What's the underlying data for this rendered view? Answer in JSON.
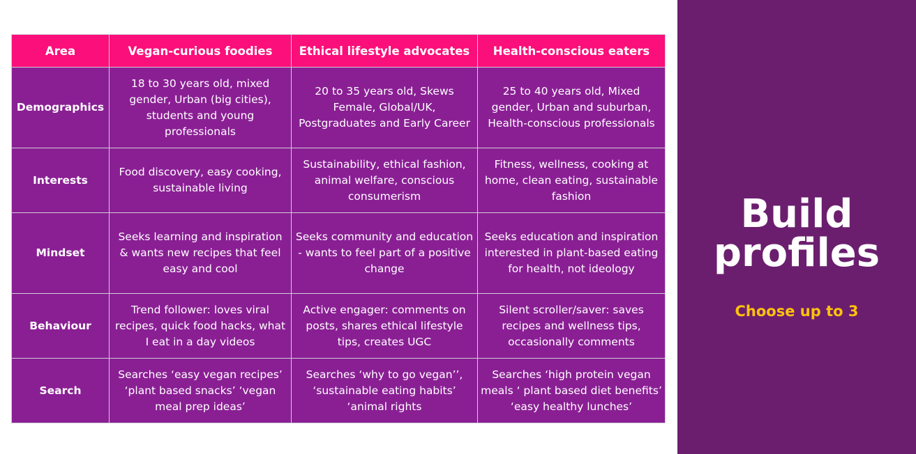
{
  "table": {
    "headers": [
      "Area",
      "Vegan-curious foodies",
      "Ethical lifestyle advocates",
      "Health-conscious eaters"
    ],
    "rows": [
      {
        "area": "Demographics",
        "cells": [
          "18 to 30 years old, mixed gender, Urban (big cities), students and young professionals",
          "20 to 35 years old, Skews Female, Global/UK, Postgraduates and Early Career",
          "25 to 40 years old, Mixed gender, Urban and suburban, Health-conscious professionals"
        ]
      },
      {
        "area": "Interests",
        "cells": [
          "Food discovery, easy cooking, sustainable living",
          "Sustainability, ethical fashion, animal welfare, conscious consumerism",
          "Fitness, wellness, cooking at home, clean eating, sustainable fashion"
        ]
      },
      {
        "area": "Mindset",
        "cells": [
          "Seeks learning and inspiration & wants new recipes that feel easy and cool",
          "Seeks community and education - wants to feel part of a positive change",
          "Seeks education and inspiration  interested in plant-based eating for health, not ideology"
        ]
      },
      {
        "area": "Behaviour",
        "cells": [
          "Trend follower: loves viral recipes, quick food hacks, what I eat in a day videos",
          "Active engager: comments on posts, shares ethical lifestyle tips, creates UGC",
          "Silent scroller/saver: saves recipes and wellness tips, occasionally comments"
        ]
      },
      {
        "area": "Search",
        "cells": [
          "Searches ‘easy vegan recipes’ ‘plant based snacks’ ‘vegan meal prep ideas’",
          "Searches ‘why to go vegan’’, ‘sustainable eating habits’ ‘animal rights",
          "Searches ‘high protein vegan meals ‘ plant based diet benefits’ ‘easy healthy lunches’"
        ]
      }
    ]
  },
  "panel": {
    "title_line1": "Build",
    "title_line2": "profiles",
    "subtitle": "Choose up to 3"
  },
  "colors": {
    "header_bg": "#fb0f7a",
    "cell_bg": "#8a1f94",
    "panel_bg": "#6b1e6e",
    "accent": "#ffc20e"
  }
}
